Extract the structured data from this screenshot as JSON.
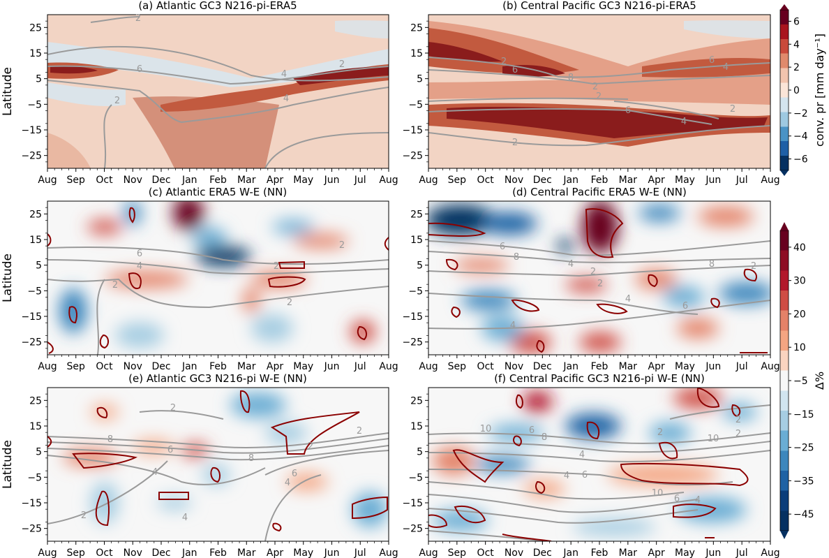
{
  "chart_data": [
    {
      "type": "heatmap",
      "panel": "a",
      "title": "(a) Atlantic GC3 N216-pi-ERA5",
      "ylabel": "Latitude",
      "x_ticks": [
        "Aug",
        "Sep",
        "Oct",
        "Nov",
        "Dec",
        "Jan",
        "Feb",
        "Mar",
        "Apr",
        "May",
        "Jun",
        "Jul",
        "Aug"
      ],
      "y_ticks": [
        25,
        15,
        5,
        -5,
        -15,
        -25
      ],
      "ylim": [
        -30,
        30
      ],
      "colorbar": "top",
      "contour_labels": [
        "2",
        "6",
        "4",
        "2",
        "4",
        "2"
      ],
      "features": [
        {
          "month": 0.5,
          "lat": 7,
          "value": 6
        },
        {
          "month": 5.5,
          "lat": -8,
          "value": 4
        },
        {
          "month": 11.0,
          "lat": 7,
          "value": 6
        }
      ]
    },
    {
      "type": "heatmap",
      "panel": "b",
      "title": "(b) Central Pacific GC3 N216-pi-ERA5",
      "x_ticks": [
        "Aug",
        "Sep",
        "Oct",
        "Nov",
        "Dec",
        "Jan",
        "Feb",
        "Mar",
        "Apr",
        "May",
        "Jun",
        "Jul",
        "Aug"
      ],
      "y_ticks": [
        25,
        15,
        5,
        -5,
        -15,
        -25
      ],
      "ylim": [
        -30,
        30
      ],
      "colorbar": "top",
      "contour_labels": [
        "2",
        "6",
        "8",
        "2",
        "2",
        "6",
        "4",
        "2",
        "2",
        "4",
        "6"
      ],
      "features": [
        {
          "month": 2.0,
          "lat": 10,
          "value": 6
        },
        {
          "month": 6.5,
          "lat": -10,
          "value": 7
        },
        {
          "month": 10.0,
          "lat": 7,
          "value": 5
        }
      ]
    },
    {
      "type": "heatmap",
      "panel": "c",
      "title": "(c) Atlantic ERA5 W-E (NN)",
      "ylabel": "Latitude",
      "x_ticks": [
        "Aug",
        "Sep",
        "Oct",
        "Nov",
        "Dec",
        "Jan",
        "Feb",
        "Mar",
        "Apr",
        "May",
        "Jun",
        "Jul",
        "Aug"
      ],
      "y_ticks": [
        25,
        15,
        5,
        -5,
        -15,
        -25
      ],
      "ylim": [
        -30,
        30
      ],
      "colorbar": "bottom",
      "contour_labels": [
        "6",
        "4",
        "2",
        "2",
        "2",
        "2"
      ],
      "features": [
        {
          "month": 5.0,
          "lat": 24,
          "value": 40
        },
        {
          "month": 6.5,
          "lat": 7,
          "value": -40
        },
        {
          "month": 1.0,
          "lat": -13,
          "value": -30
        }
      ]
    },
    {
      "type": "heatmap",
      "panel": "d",
      "title": "(d) Central Pacific ERA5 W-E (NN)",
      "x_ticks": [
        "Aug",
        "Sep",
        "Oct",
        "Nov",
        "Dec",
        "Jan",
        "Feb",
        "Mar",
        "Apr",
        "May",
        "Jun",
        "Jul",
        "Aug"
      ],
      "y_ticks": [
        25,
        15,
        5,
        -5,
        -15,
        -25
      ],
      "ylim": [
        -30,
        30
      ],
      "colorbar": "bottom",
      "contour_labels": [
        "6",
        "8",
        "4",
        "2",
        "2",
        "4",
        "6",
        "8",
        "4",
        "2"
      ],
      "features": [
        {
          "month": 0.8,
          "lat": 20,
          "value": -45
        },
        {
          "month": 6.5,
          "lat": 18,
          "value": 45
        },
        {
          "month": 5.3,
          "lat": 12,
          "value": -40
        }
      ]
    },
    {
      "type": "heatmap",
      "panel": "e",
      "title": "(e) Atlantic GC3 N216-pi W-E (NN)",
      "ylabel": "Latitude",
      "x_ticks": [
        "Aug",
        "Sep",
        "Oct",
        "Nov",
        "Dec",
        "Jan",
        "Feb",
        "Mar",
        "Apr",
        "May",
        "Jun",
        "Jul",
        "Aug"
      ],
      "y_ticks": [
        25,
        15,
        5,
        -5,
        -15,
        -25
      ],
      "ylim": [
        -30,
        30
      ],
      "colorbar": "bottom",
      "contour_labels": [
        "2",
        "2",
        "8",
        "6",
        "4",
        "8",
        "4",
        "6",
        "4",
        "2",
        "2"
      ],
      "features": [
        {
          "month": 7.5,
          "lat": 22,
          "value": -30
        },
        {
          "month": 9.5,
          "lat": -15,
          "value": -25
        },
        {
          "month": 6.0,
          "lat": 5,
          "value": 25
        }
      ]
    },
    {
      "type": "heatmap",
      "panel": "f",
      "title": "(f) Central Pacific GC3 N216-pi W-E (NN)",
      "x_ticks": [
        "Aug",
        "Sep",
        "Oct",
        "Nov",
        "Dec",
        "Jan",
        "Feb",
        "Mar",
        "Apr",
        "May",
        "Jun",
        "Jul",
        "Aug"
      ],
      "y_ticks": [
        25,
        15,
        5,
        -5,
        -15,
        -25
      ],
      "ylim": [
        -30,
        30
      ],
      "colorbar": "bottom",
      "contour_labels": [
        "10",
        "6",
        "8",
        "4",
        "6",
        "4",
        "10",
        "6",
        "4",
        "2",
        "2",
        "10",
        "2"
      ],
      "features": [
        {
          "month": 4.0,
          "lat": 24,
          "value": 30
        },
        {
          "month": 6.0,
          "lat": 14,
          "value": -40
        },
        {
          "month": 9.0,
          "lat": -2,
          "value": 25
        }
      ]
    }
  ],
  "colorbar_top": {
    "label": "conv. pr [mm day⁻¹]",
    "ticks": [
      "6",
      "4",
      "2",
      "0",
      "−2",
      "−4",
      "−6"
    ],
    "colors": [
      "#67001f",
      "#a9151e",
      "#c94a3b",
      "#e08a6c",
      "#f2c4ae",
      "#fbe5d8",
      "#d4e4ee",
      "#9ec9e1",
      "#4a93c5",
      "#1f5fa6",
      "#053061"
    ]
  },
  "colorbar_bottom": {
    "label": "Δ%",
    "ticks": [
      "40",
      "30",
      "20",
      "10",
      "−5",
      "−15",
      "−25",
      "−35",
      "−45"
    ],
    "colors": [
      "#67001f",
      "#8e0d24",
      "#b2182b",
      "#cf4d44",
      "#e48268",
      "#f4a582",
      "#fad4c0",
      "#f7f7f7",
      "#d1e5f0",
      "#a6cde2",
      "#6aadd4",
      "#3d87bd",
      "#1f62a4",
      "#0b3d7a",
      "#053061"
    ]
  }
}
